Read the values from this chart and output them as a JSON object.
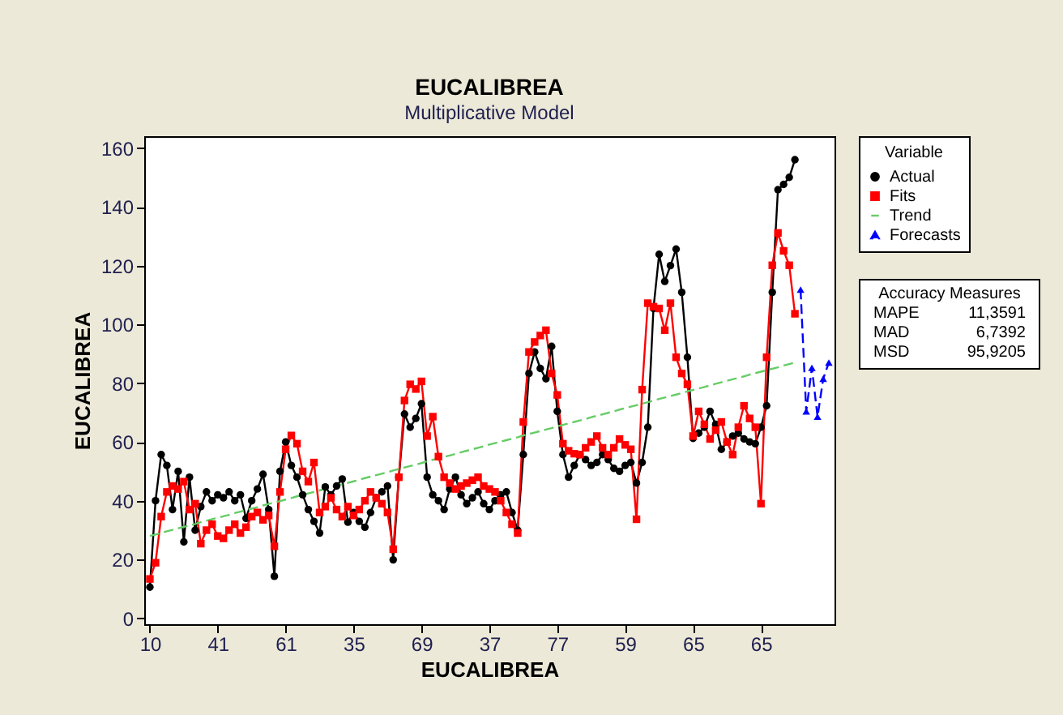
{
  "chart_data": {
    "type": "line",
    "title": "EUCALIBREA",
    "subtitle": "Multiplicative Model",
    "xlabel": "EUCALIBREA",
    "ylabel": "EUCALIBREA",
    "legend_title": "Variable",
    "legend": "right",
    "grid": false,
    "categories": [
      "10",
      null,
      null,
      null,
      null,
      null,
      null,
      null,
      null,
      null,
      null,
      null,
      "41",
      null,
      null,
      null,
      null,
      null,
      null,
      null,
      null,
      null,
      null,
      null,
      "61",
      null,
      null,
      null,
      null,
      null,
      null,
      null,
      null,
      null,
      null,
      null,
      "35",
      null,
      null,
      null,
      null,
      null,
      null,
      null,
      null,
      null,
      null,
      null,
      "69",
      null,
      null,
      null,
      null,
      null,
      null,
      null,
      null,
      null,
      null,
      null,
      "37",
      null,
      null,
      null,
      null,
      null,
      null,
      null,
      null,
      null,
      null,
      null,
      "77",
      null,
      null,
      null,
      null,
      null,
      null,
      null,
      null,
      null,
      null,
      null,
      "59",
      null,
      null,
      null,
      null,
      null,
      null,
      null,
      null,
      null,
      null,
      null,
      "65",
      null,
      null,
      null,
      null,
      null,
      null,
      null,
      null,
      null,
      null,
      null,
      "65",
      null,
      null,
      null,
      null,
      null,
      null,
      null,
      null,
      null,
      null,
      null,
      null
    ],
    "ylim": [
      -2,
      164
    ],
    "yticks": [
      0,
      20,
      40,
      60,
      80,
      100,
      120,
      140,
      160
    ],
    "series": [
      {
        "name": "Actual",
        "color": "#000000",
        "marker": "circle",
        "line_style": "solid",
        "values": [
          10.6,
          40,
          55.7,
          52,
          37,
          50,
          26,
          48,
          30,
          38,
          43,
          40,
          42,
          41,
          43,
          40,
          42,
          34,
          40,
          44,
          49,
          37,
          14.3,
          50,
          60,
          52,
          48,
          42,
          37,
          33,
          29,
          44.7,
          42,
          45,
          47.4,
          32.7,
          36,
          33,
          31,
          36,
          41,
          43,
          45,
          19.9,
          48,
          69.5,
          65,
          68,
          73,
          48,
          42,
          40,
          37,
          44,
          48,
          42,
          39,
          41,
          43,
          39,
          37,
          40,
          42,
          43,
          36,
          30,
          55.7,
          83.3,
          90.6,
          85,
          81.5,
          92.5,
          70.4,
          55.7,
          48,
          52,
          55.7,
          54,
          52,
          53,
          55.7,
          54,
          51,
          50,
          52,
          53,
          46,
          53,
          65,
          105.4,
          123.8,
          114.6,
          120,
          125.6,
          110.9,
          88.8,
          61.2,
          63,
          65,
          70.4,
          66,
          57.5,
          60,
          62,
          63,
          61,
          60,
          59.4,
          65,
          72.3,
          110.9,
          145.8,
          147.6,
          150,
          156,
          null,
          null,
          null,
          null,
          null,
          null
        ]
      },
      {
        "name": "Fits",
        "color": "#ff0000",
        "marker": "square",
        "line_style": "solid",
        "values": [
          13.4,
          18.9,
          34.6,
          43,
          45,
          44,
          46.5,
          37,
          39,
          25.4,
          30,
          32,
          28,
          27.2,
          30,
          32,
          29,
          31,
          34.6,
          36,
          33.5,
          35,
          24.5,
          43,
          57.5,
          62.2,
          59.4,
          50,
          46.5,
          53,
          36,
          38,
          41,
          37,
          34.6,
          38,
          35,
          37,
          40,
          43,
          41,
          39,
          36,
          23.5,
          48,
          74.1,
          79.6,
          78,
          80.6,
          62,
          68.6,
          55,
          48,
          46,
          44,
          45,
          46,
          47,
          48,
          45,
          44,
          43,
          40,
          36,
          32,
          29,
          66.8,
          90.6,
          94,
          96.2,
          98,
          83.3,
          76,
          59.4,
          57,
          56,
          55.7,
          58,
          60,
          62,
          58,
          55.7,
          58,
          61,
          59,
          57.5,
          33.7,
          77.8,
          107.2,
          106,
          105.4,
          98,
          107.2,
          88.8,
          83.3,
          79.6,
          62,
          70.4,
          66,
          61,
          64,
          66.8,
          60,
          55.7,
          65,
          72.3,
          68,
          65,
          39,
          88.8,
          120.1,
          131.1,
          125,
          120.1,
          103.6,
          null,
          null,
          null,
          null,
          null,
          null
        ]
      },
      {
        "name": "Trend",
        "color": "#66cc66",
        "marker": "none",
        "line_style": "dashed",
        "values": [
          28.0,
          28.5,
          29.0,
          29.6,
          30.1,
          30.6,
          31.1,
          31.6,
          32.1,
          32.7,
          33.2,
          33.7,
          34.2,
          34.7,
          35.2,
          35.8,
          36.3,
          36.8,
          37.3,
          37.8,
          38.4,
          38.9,
          39.4,
          39.9,
          40.4,
          40.9,
          41.5,
          42.0,
          42.5,
          43.0,
          43.5,
          44.0,
          44.6,
          45.1,
          45.6,
          46.1,
          46.6,
          47.1,
          47.7,
          48.2,
          48.7,
          49.2,
          49.7,
          50.3,
          50.8,
          51.3,
          51.8,
          52.3,
          52.8,
          53.4,
          53.9,
          54.4,
          54.9,
          55.4,
          55.9,
          56.5,
          57.0,
          57.5,
          58.0,
          58.5,
          59.1,
          59.6,
          60.1,
          60.6,
          61.1,
          61.6,
          62.2,
          62.7,
          63.2,
          63.7,
          64.2,
          64.7,
          65.3,
          65.8,
          66.3,
          66.8,
          67.3,
          67.8,
          68.4,
          68.9,
          69.4,
          69.9,
          70.4,
          71.0,
          71.5,
          72.0,
          72.5,
          73.0,
          73.5,
          74.1,
          74.6,
          75.1,
          75.6,
          76.1,
          76.6,
          77.2,
          77.7,
          78.2,
          78.7,
          79.2,
          79.8,
          80.3,
          80.8,
          81.3,
          81.8,
          82.3,
          82.9,
          83.4,
          83.9,
          84.4,
          84.9,
          85.4,
          86.0,
          86.5,
          87.0,
          null,
          null,
          null,
          null,
          null,
          null
        ]
      },
      {
        "name": "Forecasts",
        "color": "#0000ff",
        "marker": "triangle",
        "line_style": "dashed",
        "values": [
          null,
          null,
          null,
          null,
          null,
          null,
          null,
          null,
          null,
          null,
          null,
          null,
          null,
          null,
          null,
          null,
          null,
          null,
          null,
          null,
          null,
          null,
          null,
          null,
          null,
          null,
          null,
          null,
          null,
          null,
          null,
          null,
          null,
          null,
          null,
          null,
          null,
          null,
          null,
          null,
          null,
          null,
          null,
          null,
          null,
          null,
          null,
          null,
          null,
          null,
          null,
          null,
          null,
          null,
          null,
          null,
          null,
          null,
          null,
          null,
          null,
          null,
          null,
          null,
          null,
          null,
          null,
          null,
          null,
          null,
          null,
          null,
          null,
          null,
          null,
          null,
          null,
          null,
          null,
          null,
          null,
          null,
          null,
          null,
          null,
          null,
          null,
          null,
          null,
          null,
          null,
          null,
          null,
          null,
          null,
          null,
          null,
          null,
          null,
          null,
          null,
          null,
          null,
          null,
          null,
          null,
          null,
          null,
          null,
          null,
          null,
          null,
          null,
          null,
          null,
          111.8,
          70.4,
          85.2,
          68.6,
          81.5,
          87
        ]
      }
    ],
    "annotations": [
      "Accuracy Measures",
      "MAPE 11,3591",
      "MAD 6,7392",
      "MSD 95,9205"
    ]
  }
}
